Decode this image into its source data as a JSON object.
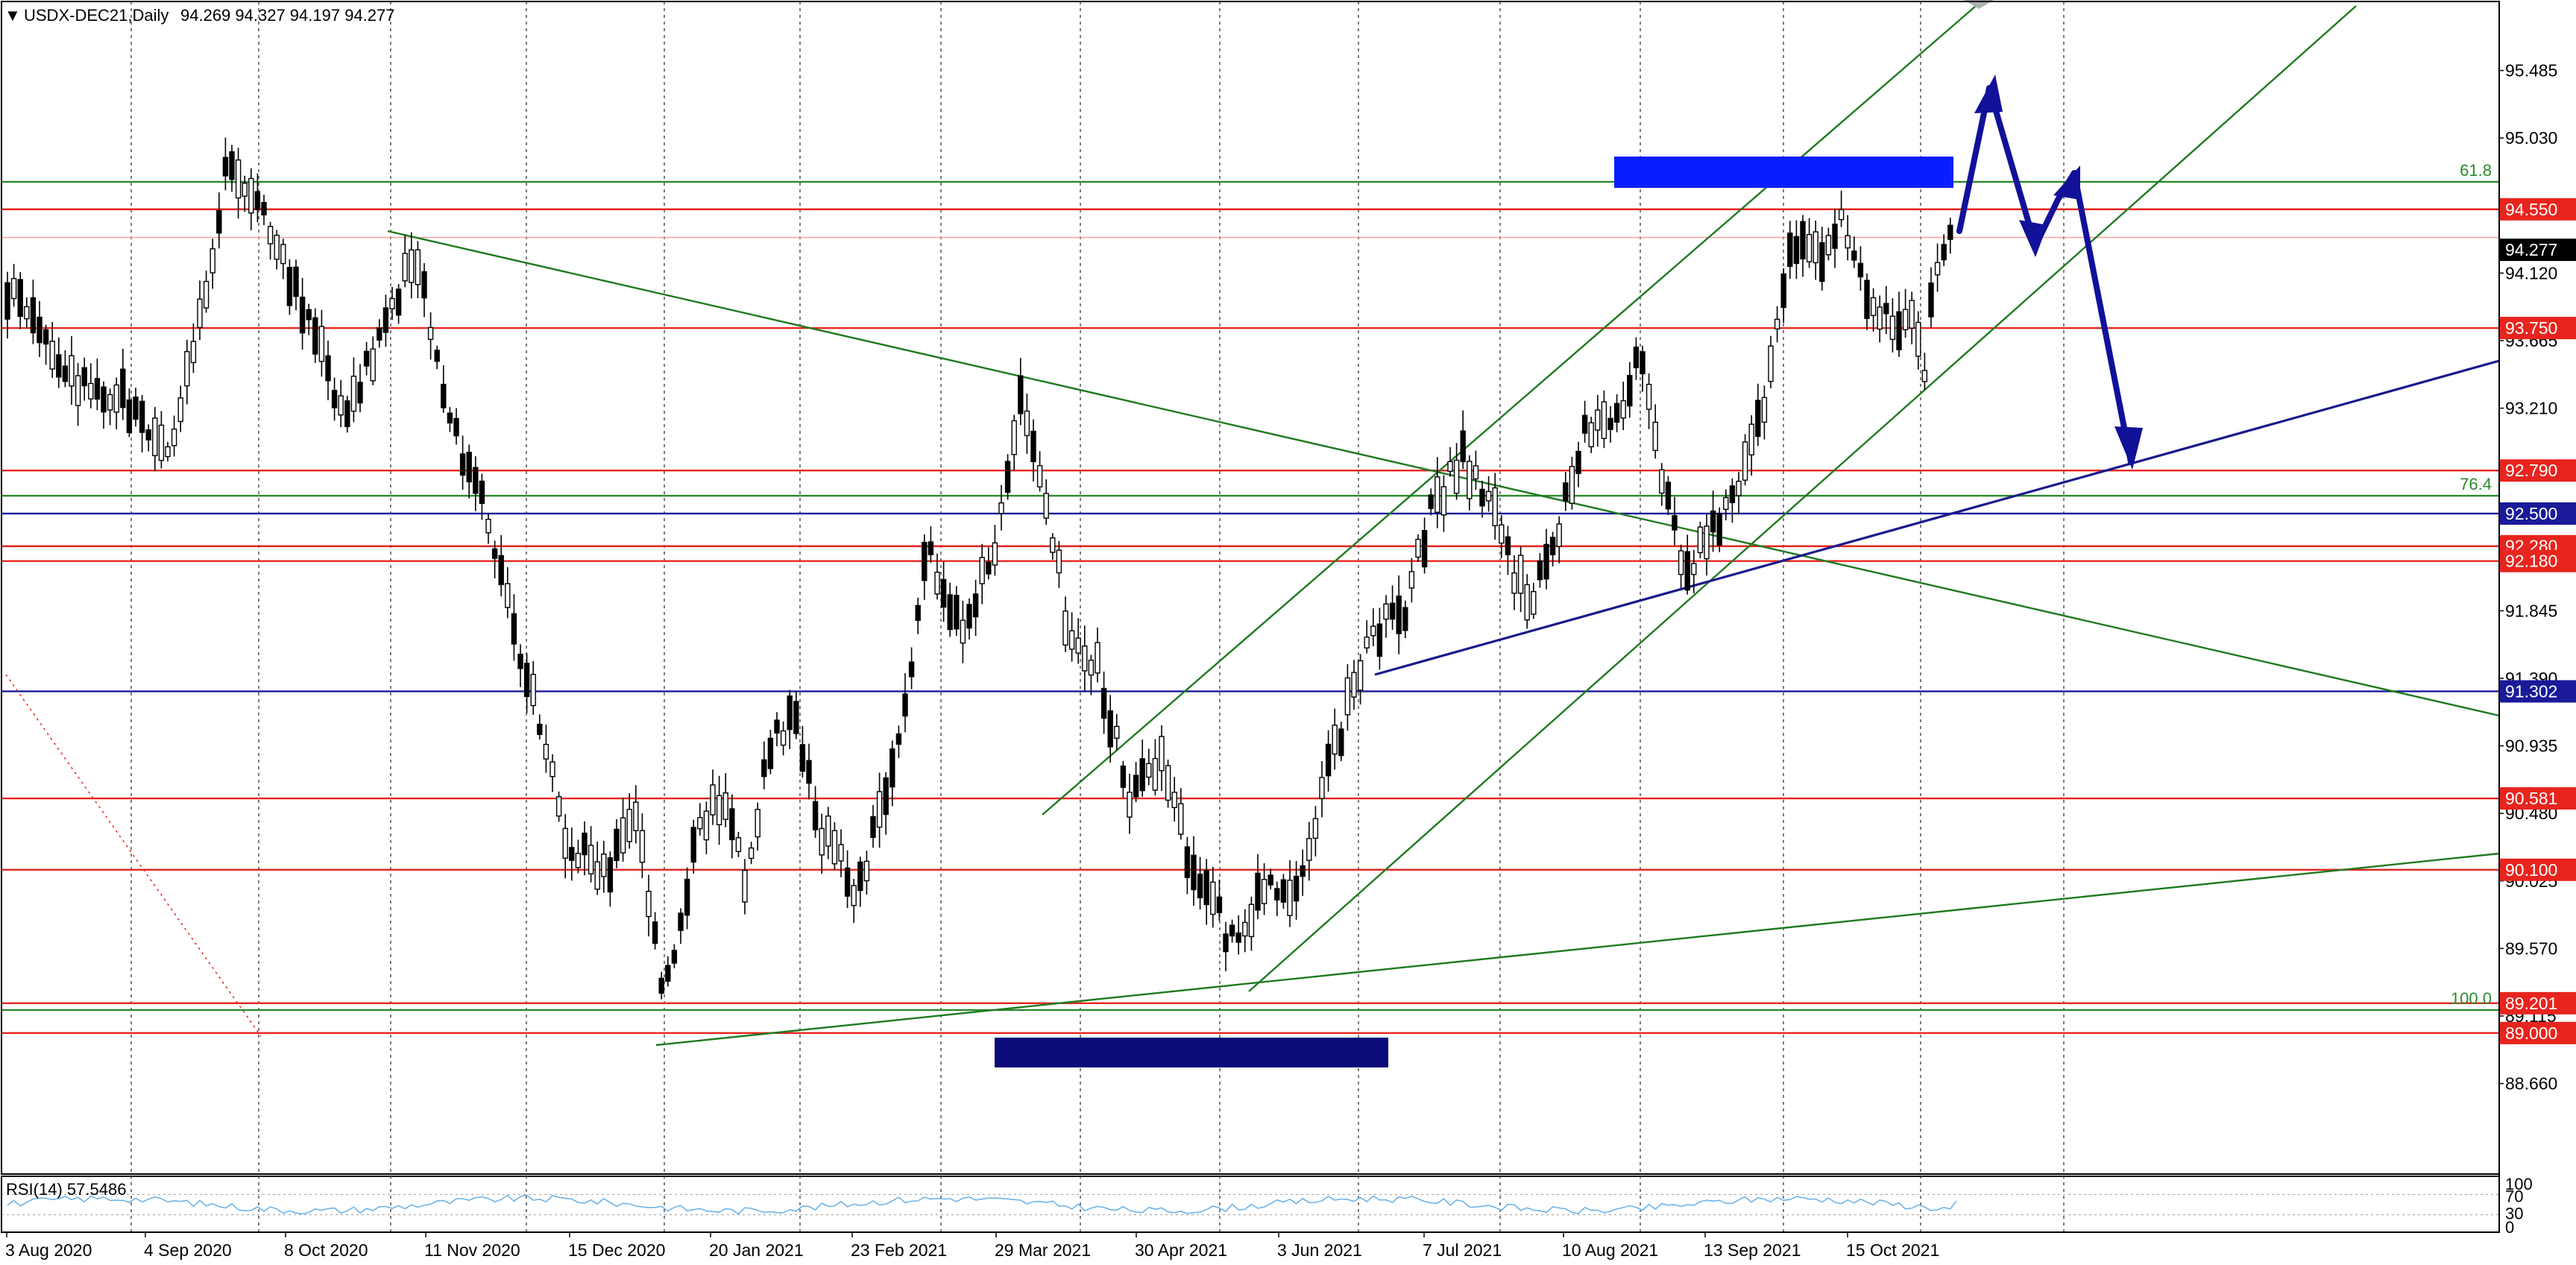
{
  "header": {
    "symbol": "USDX-DEC21,Daily",
    "ohlc": "94.269 94.327 94.197 94.277",
    "menu_glyph": "▼"
  },
  "chart_data": {
    "type": "candlestick",
    "title": "",
    "price_axis": {
      "ylim": [
        88.05,
        95.95
      ],
      "ticks": [
        95.485,
        95.03,
        94.575,
        94.12,
        93.665,
        93.21,
        92.755,
        92.3,
        91.845,
        91.39,
        90.935,
        90.48,
        90.025,
        89.57,
        89.115,
        88.66
      ]
    },
    "time_axis": {
      "labels": [
        "3 Aug 2020",
        "4 Sep 2020",
        "8 Oct 2020",
        "11 Nov 2020",
        "15 Dec 2020",
        "20 Jan 2021",
        "23 Feb 2021",
        "29 Mar 2021",
        "30 Apr 2021",
        "3 Jun 2021",
        "7 Jul 2021",
        "10 Aug 2021",
        "13 Sep 2021",
        "15 Oct 2021"
      ]
    },
    "current_price": {
      "value": 94.277,
      "label": "94.277",
      "color": "#000000"
    },
    "horizontal_levels": [
      {
        "value": 94.55,
        "label": "94.550",
        "color": "#e8241e",
        "tag": true
      },
      {
        "value": 93.75,
        "label": "93.750",
        "color": "#e8241e",
        "tag": true
      },
      {
        "value": 92.79,
        "label": "92.790",
        "color": "#e8241e",
        "tag": true
      },
      {
        "value": 92.5,
        "label": "92.500",
        "color": "#1a1a9a",
        "tag": true
      },
      {
        "value": 92.28,
        "label": "92.280",
        "color": "#e8241e",
        "tag": true
      },
      {
        "value": 92.18,
        "label": "92.180",
        "color": "#e8241e",
        "tag": true
      },
      {
        "value": 91.302,
        "label": "91.302",
        "color": "#1a1a9a",
        "tag": true
      },
      {
        "value": 90.581,
        "label": "90.581",
        "color": "#e8241e",
        "tag": true
      },
      {
        "value": 90.1,
        "label": "90.100",
        "color": "#e8241e",
        "tag": true
      },
      {
        "value": 89.201,
        "label": "89.201",
        "color": "#e8241e",
        "tag": true
      },
      {
        "value": 89.0,
        "label": "89.000",
        "color": "#e8241e",
        "tag": true
      },
      {
        "value": 94.36,
        "label": "",
        "color": "#f4a6a0",
        "tag": false
      }
    ],
    "fib_levels": [
      {
        "value": 94.735,
        "label": "61.8",
        "color": "#2a8a2a"
      },
      {
        "value": 92.62,
        "label": "76.4",
        "color": "#2a8a2a"
      },
      {
        "value": 89.155,
        "label": "100.0",
        "color": "#2a8a2a"
      }
    ],
    "rsi": {
      "label": "RSI(14) 57.5486",
      "scale_labels": [
        "100",
        "70",
        "30",
        "0"
      ],
      "value": 57.5486
    },
    "colors": {
      "candle": "#000000",
      "support_resistance": "#e8241e",
      "trendline_green": "#1f7a1f",
      "trendline_blue": "#1a1a8c",
      "zone_blue": "#0a1fff",
      "zone_navy": "#0b0b7a",
      "projection_arrow": "#111199"
    }
  }
}
